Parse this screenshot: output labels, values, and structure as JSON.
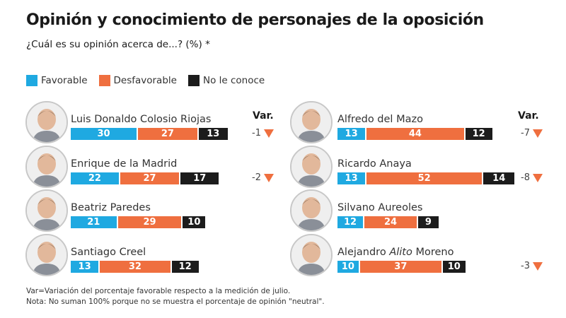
{
  "header": {
    "title": "Opinión y conocimiento de personajes de la oposición",
    "subtitle": "¿Cuál es su opinión acerca de...? (%) *"
  },
  "legend": [
    {
      "label": "Favorable",
      "color": "#1fa9e1"
    },
    {
      "label": "Desfavorable",
      "color": "#ef6f3f"
    },
    {
      "label": "No le conoce",
      "color": "#1c1c1c"
    }
  ],
  "var_header": "Var.",
  "chart_data": {
    "type": "bar",
    "orientation": "horizontal-stacked",
    "title": "Opinión y conocimiento de personajes de la oposición",
    "subtitle": "¿Cuál es su opinión acerca de...? (%) *",
    "unit": "%",
    "series_names": [
      "Favorable",
      "Desfavorable",
      "No le conoce"
    ],
    "series_colors": [
      "#1fa9e1",
      "#ef6f3f",
      "#1c1c1c"
    ],
    "categories": [
      "Luis Donaldo Colosio Riojas",
      "Enrique de la Madrid",
      "Beatriz Paredes",
      "Santiago Creel",
      "Alfredo del Mazo",
      "Ricardo Anaya",
      "Silvano Aureoles",
      "Alejandro Alito Moreno"
    ],
    "series": [
      {
        "name": "Favorable",
        "values": [
          30,
          22,
          21,
          13,
          13,
          13,
          12,
          10
        ]
      },
      {
        "name": "Desfavorable",
        "values": [
          27,
          27,
          29,
          32,
          44,
          52,
          24,
          37
        ]
      },
      {
        "name": "No le conoce",
        "values": [
          13,
          17,
          10,
          12,
          12,
          14,
          9,
          10
        ]
      }
    ],
    "variation": [
      -1,
      -2,
      null,
      null,
      -7,
      -8,
      null,
      -3
    ],
    "variation_label": "Var.",
    "legend_position": "top-left",
    "grid": false
  },
  "people": [
    {
      "name": "Luis Donaldo Colosio Riojas",
      "name_pre": "Luis Donaldo Colosio Riojas",
      "name_em": "",
      "name_post": "",
      "fav": 30,
      "desf": 27,
      "nc": 13,
      "var": "-1",
      "column": "left"
    },
    {
      "name": "Enrique de la Madrid",
      "name_pre": "Enrique de la Madrid",
      "name_em": "",
      "name_post": "",
      "fav": 22,
      "desf": 27,
      "nc": 17,
      "var": "-2",
      "column": "left"
    },
    {
      "name": "Beatriz Paredes",
      "name_pre": "Beatriz Paredes",
      "name_em": "",
      "name_post": "",
      "fav": 21,
      "desf": 29,
      "nc": 10,
      "var": "",
      "column": "left"
    },
    {
      "name": "Santiago Creel",
      "name_pre": "Santiago Creel",
      "name_em": "",
      "name_post": "",
      "fav": 13,
      "desf": 32,
      "nc": 12,
      "var": "",
      "column": "left"
    },
    {
      "name": "Alfredo del Mazo",
      "name_pre": "Alfredo del Mazo",
      "name_em": "",
      "name_post": "",
      "fav": 13,
      "desf": 44,
      "nc": 12,
      "var": "-7",
      "column": "right"
    },
    {
      "name": "Ricardo Anaya",
      "name_pre": "Ricardo Anaya",
      "name_em": "",
      "name_post": "",
      "fav": 13,
      "desf": 52,
      "nc": 14,
      "var": "-8",
      "column": "right"
    },
    {
      "name": "Silvano Aureoles",
      "name_pre": "Silvano Aureoles",
      "name_em": "",
      "name_post": "",
      "fav": 12,
      "desf": 24,
      "nc": 9,
      "var": "",
      "column": "right"
    },
    {
      "name": "Alejandro Alito Moreno",
      "name_pre": "Alejandro ",
      "name_em": "Alito",
      "name_post": " Moreno",
      "fav": 10,
      "desf": 37,
      "nc": 10,
      "var": "-3",
      "column": "right"
    }
  ],
  "notes": [
    "Var=Variación del porcentaje favorable respecto a la medición de julio.",
    "Nota: No suman 100% porque no se muestra el porcentaje de opinión \"neutral\"."
  ]
}
